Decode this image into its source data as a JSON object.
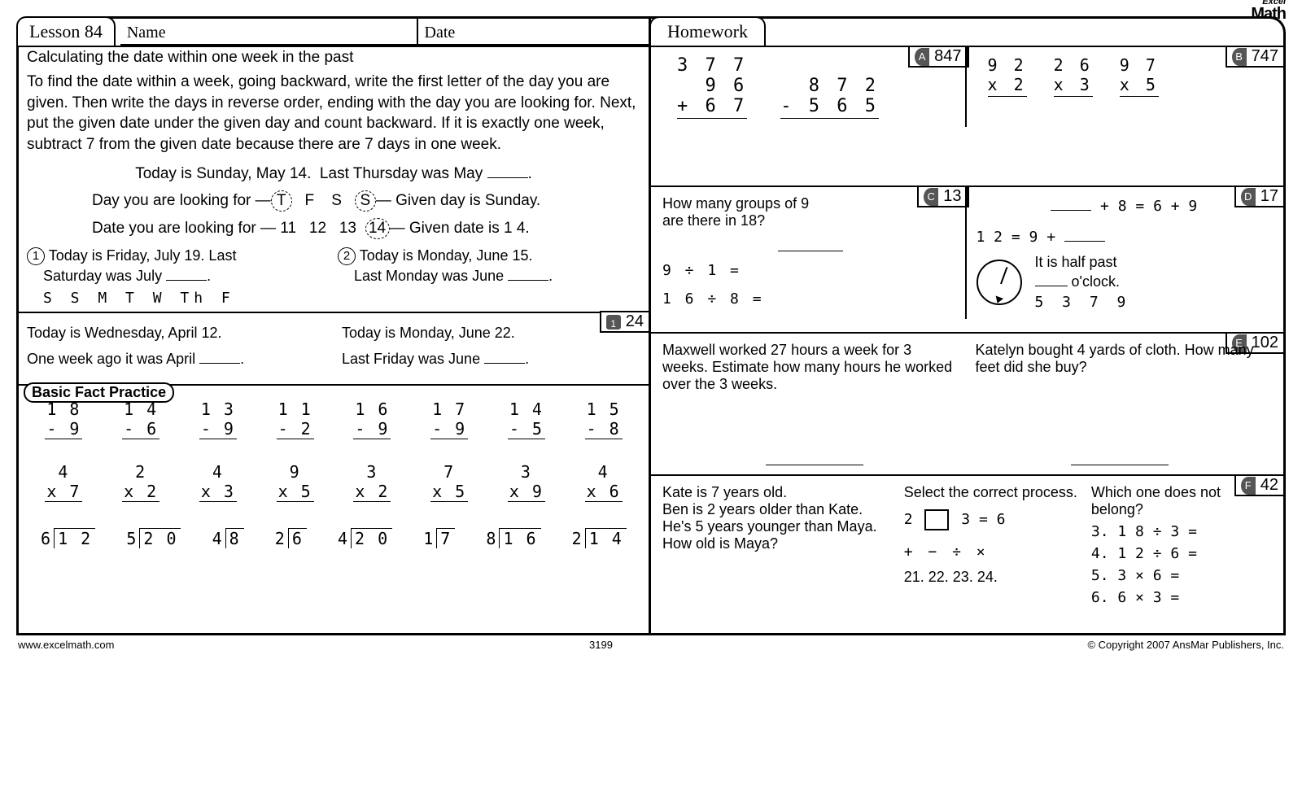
{
  "header": {
    "lesson": "Lesson 84",
    "name_label": "Name",
    "date_label": "Date",
    "homework": "Homework",
    "logo_top": "Excel",
    "logo_bottom": "Math"
  },
  "main": {
    "title": "Calculating the date within one week in the past",
    "para": "To find the date within a week, going backward, write the first letter of the day you are given. Then write the days in reverse order, ending with the day you are looking for. Next, put the given date under the given day and count backward. If it is exactly one week, subtract 7 from the given date because there are 7 days in one week.",
    "example_line": "Today is Sunday, May 14.  Last Thursday was May _____.",
    "row1_label": "Day you are looking for",
    "row1_seq": [
      "T",
      "F",
      "S",
      "S"
    ],
    "row1_tail": "Given day is Sunday.",
    "row2_label": "Date you are looking for",
    "row2_seq": [
      "11",
      "12",
      "13",
      "14"
    ],
    "row2_tail": "Given date is 1 4.",
    "ex1_a": "Today is Friday, July 19.  Last",
    "ex1_b": "Saturday was July _____.",
    "ex1_days": "S   S   M   T   W   Th   F",
    "ex2_a": "Today is Monday, June 15.",
    "ex2_b": "Last Monday was June _____.",
    "box_ans": "24",
    "ex3_a": "Today is Wednesday, April 12.",
    "ex3_b": "One week ago it was April _____.",
    "ex4_a": "Today is Monday, June 22.",
    "ex4_b": "Last Friday was June _____.",
    "bfp_label": "Basic Fact Practice",
    "bfp_sub": [
      {
        "t": "1 8",
        "b": "- 9"
      },
      {
        "t": "1 4",
        "b": "- 6"
      },
      {
        "t": "1 3",
        "b": "- 9"
      },
      {
        "t": "1 1",
        "b": "- 2"
      },
      {
        "t": "1 6",
        "b": "- 9"
      },
      {
        "t": "1 7",
        "b": "- 9"
      },
      {
        "t": "1 4",
        "b": "- 5"
      },
      {
        "t": "1 5",
        "b": "- 8"
      }
    ],
    "bfp_mul": [
      {
        "t": "4",
        "b": "x 7"
      },
      {
        "t": "2",
        "b": "x 2"
      },
      {
        "t": "4",
        "b": "x 3"
      },
      {
        "t": "9",
        "b": "x 5"
      },
      {
        "t": "3",
        "b": "x 2"
      },
      {
        "t": "7",
        "b": "x 5"
      },
      {
        "t": "3",
        "b": "x 9"
      },
      {
        "t": "4",
        "b": "x 6"
      }
    ],
    "bfp_div": [
      {
        "d": "6",
        "n": "1 2"
      },
      {
        "d": "5",
        "n": "2 0"
      },
      {
        "d": "4",
        "n": "8"
      },
      {
        "d": "2",
        "n": "6"
      },
      {
        "d": "4",
        "n": "2 0"
      },
      {
        "d": "1",
        "n": "7"
      },
      {
        "d": "8",
        "n": "1 6"
      },
      {
        "d": "2",
        "n": "1 4"
      }
    ]
  },
  "hw": {
    "A": {
      "ans": "847",
      "p1": {
        "a": "3 7 7",
        "b": "9 6",
        "c": "+  6 7"
      },
      "p2": {
        "a": "8 7 2",
        "b": "- 5 6 5"
      },
      "p3": {
        "a": "9 2",
        "b": "x  2"
      },
      "p4": {
        "a": "2 6",
        "b": "x  3"
      },
      "p5": {
        "a": "9 7",
        "b": "x  5"
      }
    },
    "B": {
      "ans": "747"
    },
    "C": {
      "ans": "13",
      "q": "How many groups of 9 are there in 18?",
      "l1": "9 ÷ 1 =",
      "l2": "1 6 ÷ 8 ="
    },
    "D": {
      "ans": "17",
      "l1": "_____ + 8 = 6 + 9",
      "l2": "1 2 = 9 + _____",
      "c1": "It is half past",
      "c2": "_____ o'clock.",
      "opts": "5  3  7  9"
    },
    "E": {
      "ans": "102",
      "q1": "Maxwell worked 27 hours a week for 3 weeks. Estimate how many hours he worked over the 3 weeks.",
      "q2": "Katelyn bought 4 yards of cloth. How many feet did she buy?"
    },
    "F": {
      "ans": "42",
      "q1a": "Kate is 7 years old.",
      "q1b": "Ben is 2 years older than Kate.",
      "q1c": "He's 5 years younger than Maya.",
      "q1d": "How old is Maya?",
      "mid_label": "Select the correct process.",
      "mid_eq_l": "2",
      "mid_eq_r": "3 = 6",
      "mid_ops": "+   −   ÷   ×",
      "mid_nums": "21. 22. 23. 24.",
      "r_label": "Which one does not belong?",
      "r1": "3. 1 8 ÷ 3 =",
      "r2": "4. 1 2 ÷ 6 =",
      "r3": "5. 3 × 6 =",
      "r4": "6. 6 × 3 ="
    }
  },
  "footer": {
    "url": "www.excelmath.com",
    "code": "3199",
    "copy": "© Copyright 2007 AnsMar Publishers, Inc."
  }
}
